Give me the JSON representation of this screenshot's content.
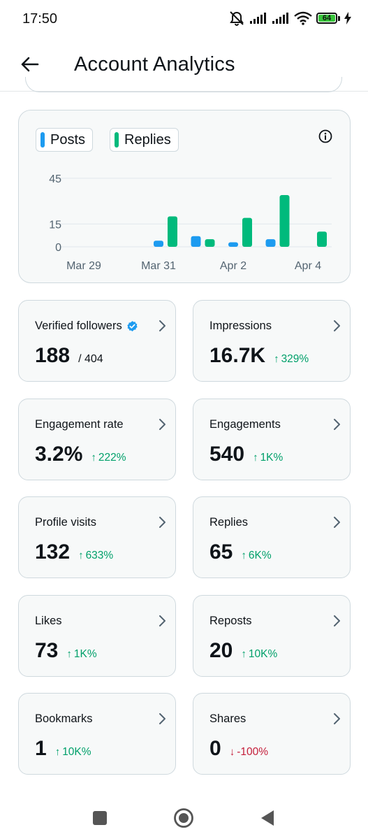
{
  "status_bar": {
    "time": "17:50",
    "battery_level": "64",
    "icons": [
      "mute-alarm-icon",
      "signal-icon",
      "signal-icon",
      "wifi-icon",
      "battery-icon",
      "charging-icon"
    ]
  },
  "header": {
    "title": "Account Analytics",
    "back_icon": "arrow-left-icon"
  },
  "chart_data": {
    "type": "bar",
    "categories": [
      "Mar 29",
      "Mar 30",
      "Mar 31",
      "Apr 1",
      "Apr 2",
      "Apr 3",
      "Apr 4"
    ],
    "x_tick_labels": [
      "Mar 29",
      "Mar 31",
      "Apr 2",
      "Apr 4"
    ],
    "y_tick_labels": [
      "45",
      "15",
      "0"
    ],
    "ylim": [
      0,
      45
    ],
    "grid": true,
    "series": [
      {
        "name": "Posts",
        "color": "#1d9bf0",
        "values": [
          0,
          0,
          4,
          7,
          3,
          5,
          0
        ]
      },
      {
        "name": "Replies",
        "color": "#00ba7c",
        "values": [
          0,
          0,
          20,
          5,
          19,
          34,
          10
        ]
      }
    ]
  },
  "stats": [
    {
      "label": "Verified followers",
      "value": "188",
      "sub": "/ 404",
      "verified": true,
      "change": ""
    },
    {
      "label": "Impressions",
      "value": "16.7K",
      "change": "329%",
      "direction": "up"
    },
    {
      "label": "Engagement rate",
      "value": "3.2%",
      "change": "222%",
      "direction": "up"
    },
    {
      "label": "Engagements",
      "value": "540",
      "change": "1K%",
      "direction": "up"
    },
    {
      "label": "Profile visits",
      "value": "132",
      "change": "633%",
      "direction": "up"
    },
    {
      "label": "Replies",
      "value": "65",
      "change": "6K%",
      "direction": "up"
    },
    {
      "label": "Likes",
      "value": "73",
      "change": "1K%",
      "direction": "up"
    },
    {
      "label": "Reposts",
      "value": "20",
      "change": "10K%",
      "direction": "up"
    },
    {
      "label": "Bookmarks",
      "value": "1",
      "change": "10K%",
      "direction": "up"
    },
    {
      "label": "Shares",
      "value": "0",
      "change": "-100%",
      "direction": "down"
    }
  ],
  "arrows": {
    "up": "↑",
    "down": "↓"
  },
  "nav_bar": {
    "buttons": [
      "recents-square-icon",
      "home-circle-icon",
      "back-triangle-icon"
    ]
  },
  "colors": {
    "posts": "#1d9bf0",
    "replies": "#00ba7c",
    "positive": "#00a06a",
    "negative": "#c41e3a",
    "verified": "#1d9bf0"
  }
}
